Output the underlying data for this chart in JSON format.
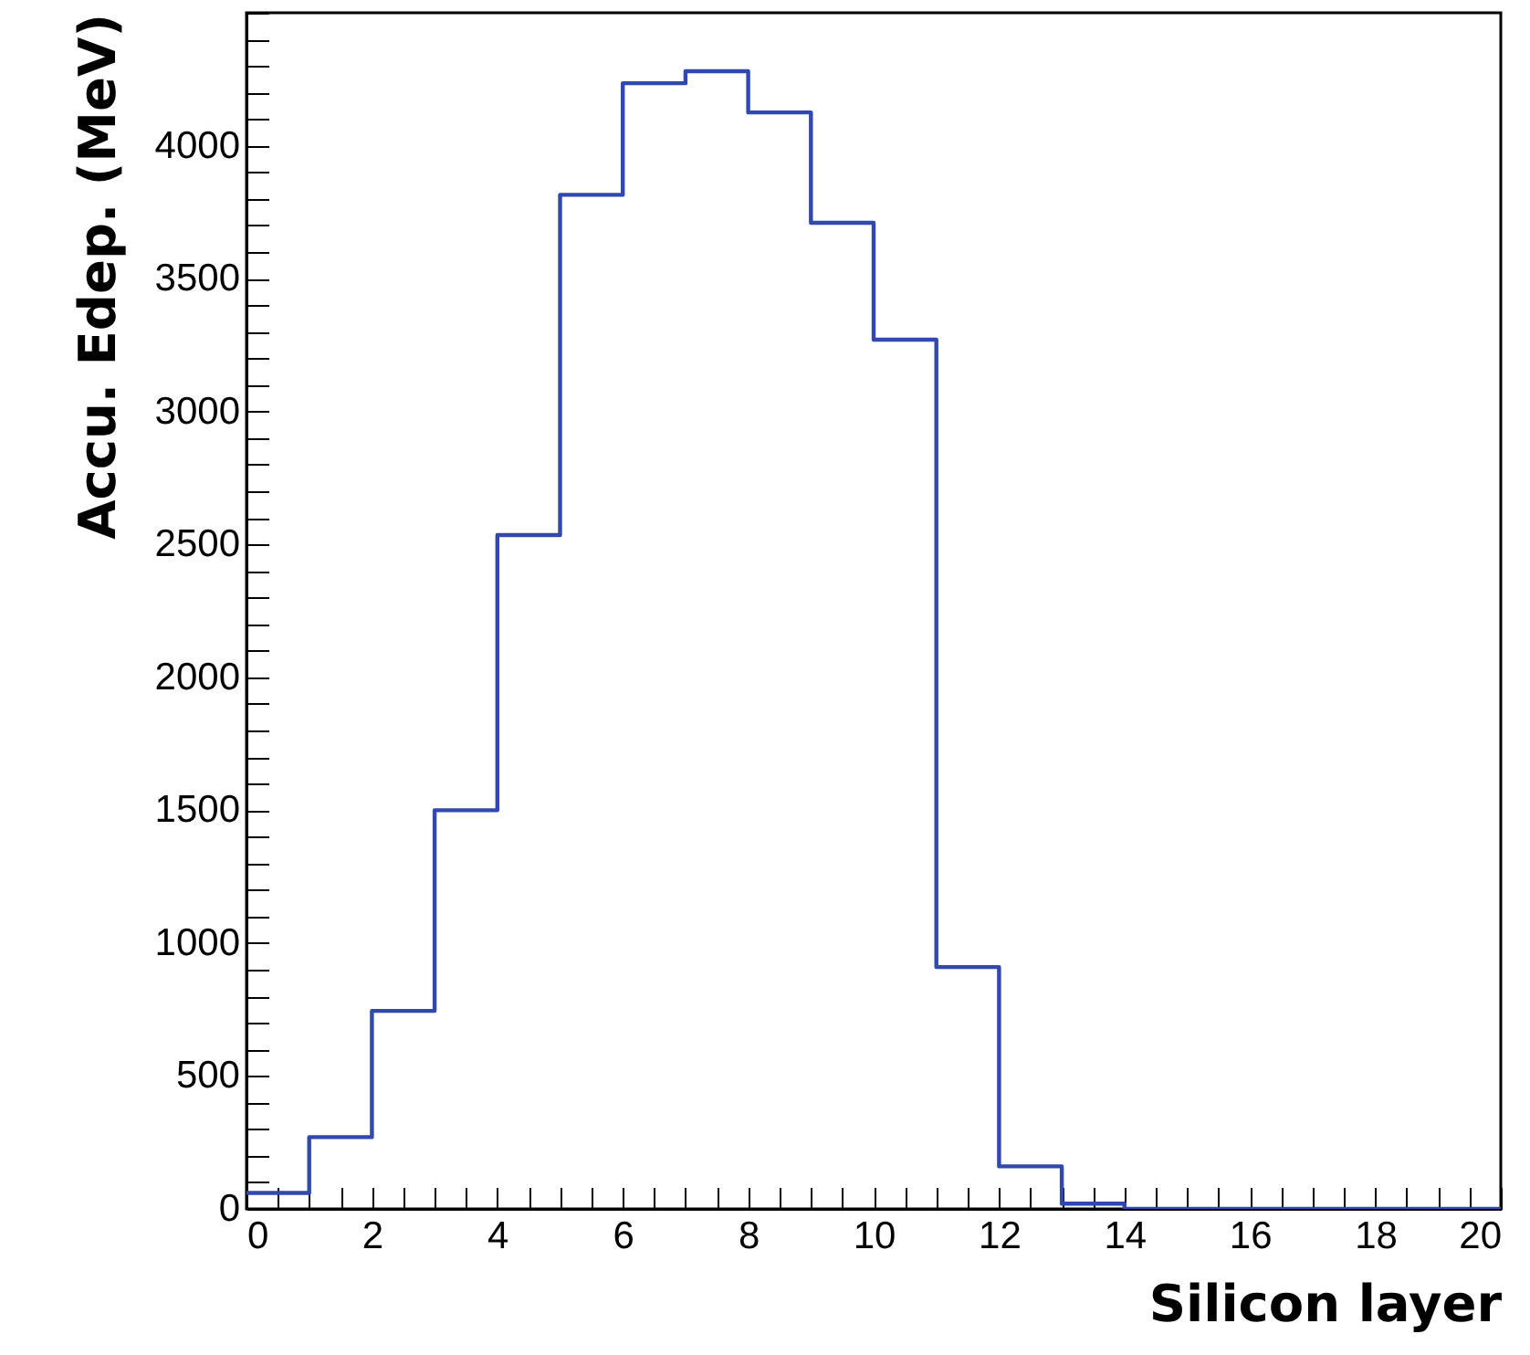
{
  "chart_data": {
    "type": "histogram",
    "xlabel": "Silicon layer",
    "ylabel": "Accu. Edep. (MeV)",
    "bins": [
      0,
      1,
      2,
      3,
      4,
      5,
      6,
      7,
      8,
      9,
      10,
      11,
      12,
      13,
      14,
      15,
      16,
      17,
      18,
      19,
      20
    ],
    "values": [
      60,
      270,
      745,
      1500,
      2535,
      3815,
      4235,
      4280,
      4125,
      3710,
      3270,
      910,
      160,
      20,
      0,
      0,
      0,
      0,
      0,
      0
    ],
    "color": "#3048b0",
    "xlim": [
      0,
      20
    ],
    "ylim": [
      0,
      4500
    ],
    "xticks": [
      0,
      {
        "value": 0.5,
        "label": null
      },
      {
        "value": 1,
        "label": null
      },
      {
        "value": 1.5,
        "label": null
      },
      2,
      {
        "value": 2.5,
        "label": null
      },
      {
        "value": 3,
        "label": null
      },
      {
        "value": 3.5,
        "label": null
      },
      4,
      {
        "value": 4.5,
        "label": null
      },
      {
        "value": 5,
        "label": null
      },
      {
        "value": 5.5,
        "label": null
      },
      6,
      {
        "value": 6.5,
        "label": null
      },
      {
        "value": 7,
        "label": null
      },
      {
        "value": 7.5,
        "label": null
      },
      8,
      {
        "value": 8.5,
        "label": null
      },
      {
        "value": 9,
        "label": null
      },
      {
        "value": 9.5,
        "label": null
      },
      10,
      {
        "value": 10.5,
        "label": null
      },
      {
        "value": 11,
        "label": null
      },
      {
        "value": 11.5,
        "label": null
      },
      12,
      {
        "value": 12.5,
        "label": null
      },
      {
        "value": 13,
        "label": null
      },
      {
        "value": 13.5,
        "label": null
      },
      14,
      {
        "value": 14.5,
        "label": null
      },
      {
        "value": 15,
        "label": null
      },
      {
        "value": 15.5,
        "label": null
      },
      16,
      {
        "value": 16.5,
        "label": null
      },
      {
        "value": 17,
        "label": null
      },
      {
        "value": 17.5,
        "label": null
      },
      18,
      {
        "value": 18.5,
        "label": null
      },
      {
        "value": 19,
        "label": null
      },
      {
        "value": 19.5,
        "label": null
      },
      20
    ],
    "yticks": [
      0,
      {
        "value": 100,
        "label": null
      },
      {
        "value": 200,
        "label": null
      },
      {
        "value": 300,
        "label": null
      },
      {
        "value": 400,
        "label": null
      },
      500,
      {
        "value": 600,
        "label": null
      },
      {
        "value": 700,
        "label": null
      },
      {
        "value": 800,
        "label": null
      },
      {
        "value": 900,
        "label": null
      },
      1000,
      {
        "value": 1100,
        "label": null
      },
      {
        "value": 1200,
        "label": null
      },
      {
        "value": 1300,
        "label": null
      },
      {
        "value": 1400,
        "label": null
      },
      1500,
      {
        "value": 1600,
        "label": null
      },
      {
        "value": 1700,
        "label": null
      },
      {
        "value": 1800,
        "label": null
      },
      {
        "value": 1900,
        "label": null
      },
      2000,
      {
        "value": 2100,
        "label": null
      },
      {
        "value": 2200,
        "label": null
      },
      {
        "value": 2300,
        "label": null
      },
      {
        "value": 2400,
        "label": null
      },
      2500,
      {
        "value": 2600,
        "label": null
      },
      {
        "value": 2700,
        "label": null
      },
      {
        "value": 2800,
        "label": null
      },
      {
        "value": 2900,
        "label": null
      },
      3000,
      {
        "value": 3100,
        "label": null
      },
      {
        "value": 3200,
        "label": null
      },
      {
        "value": 3300,
        "label": null
      },
      {
        "value": 3400,
        "label": null
      },
      3500,
      {
        "value": 3600,
        "label": null
      },
      {
        "value": 3700,
        "label": null
      },
      {
        "value": 3800,
        "label": null
      },
      {
        "value": 3900,
        "label": null
      },
      4000,
      {
        "value": 4100,
        "label": null
      },
      {
        "value": 4200,
        "label": null
      },
      {
        "value": 4300,
        "label": null
      },
      {
        "value": 4400,
        "label": null
      },
      {
        "value": 4500,
        "label": null
      }
    ],
    "grid": false
  }
}
